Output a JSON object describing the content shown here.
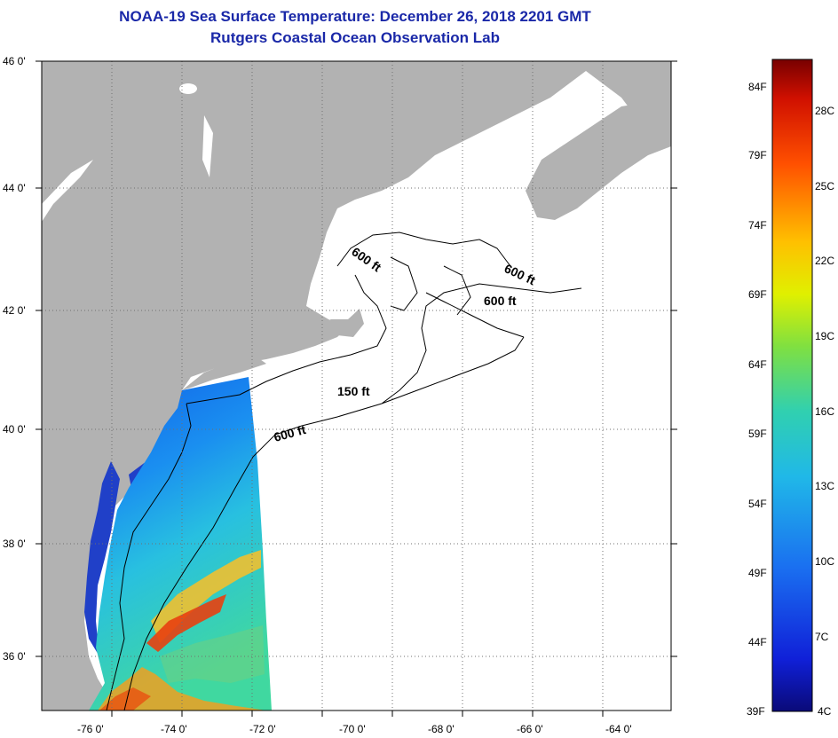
{
  "title_line1": "NOAA-19 Sea Surface Temperature:  December 26, 2018 2201 GMT",
  "title_line2": "Rutgers Coastal Ocean Observation Lab",
  "lat_labels": [
    "46 0'",
    "44 0'",
    "42 0'",
    "40 0'",
    "38 0'",
    "36 0'"
  ],
  "lon_labels": [
    "-76 0'",
    "-74 0'",
    "-72 0'",
    "-70 0'",
    "-68 0'",
    "-66 0'",
    "-64 0'"
  ],
  "contours": [
    "600 ft",
    "600 ft",
    "600 ft",
    "150 ft",
    "600 ft"
  ],
  "colorbar_f": [
    "84F",
    "79F",
    "74F",
    "69F",
    "64F",
    "59F",
    "54F",
    "49F",
    "44F",
    "39F"
  ],
  "colorbar_c": [
    "28C",
    "25C",
    "22C",
    "19C",
    "16C",
    "13C",
    "10C",
    "7C",
    "4C"
  ],
  "colors": {
    "land": "#b2b2b2",
    "ocean": "#ffffff",
    "title": "#1a28a8"
  }
}
